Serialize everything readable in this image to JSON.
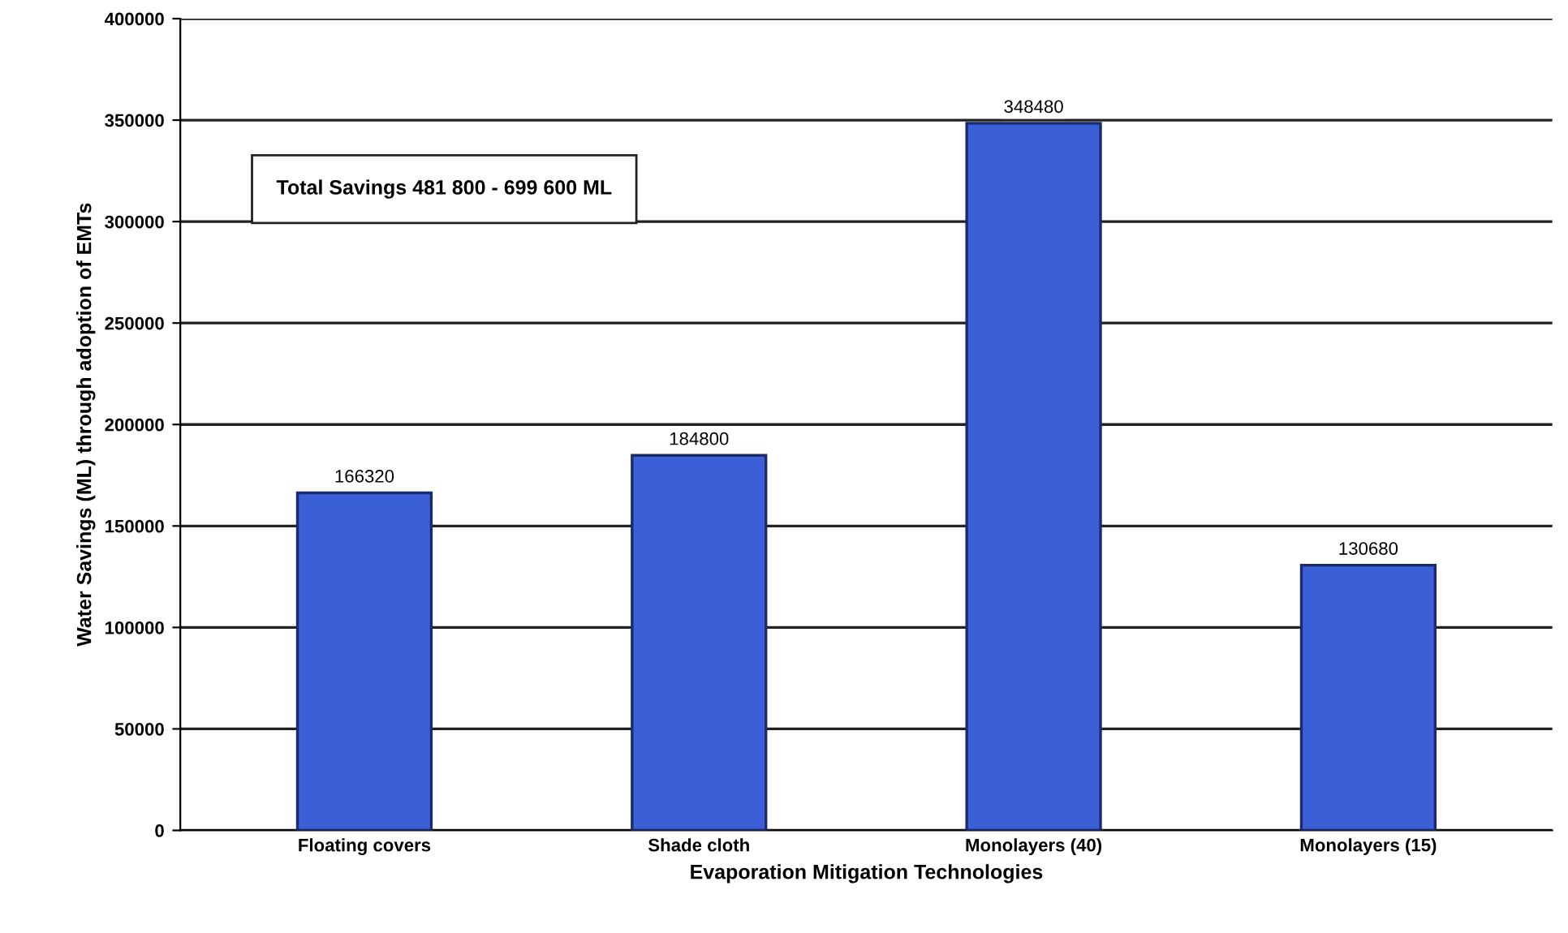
{
  "chart_data": {
    "type": "bar",
    "xlabel": "Evaporation Mitigation Technologies",
    "ylabel": "Water Savings (ML) through adoption of EMTs",
    "categories": [
      "Floating covers",
      "Shade cloth",
      "Monolayers (40)",
      "Monolayers (15)"
    ],
    "values": [
      166320,
      184800,
      348480,
      130680
    ],
    "color": "#3a5fd6",
    "ylim": [
      0,
      400000
    ],
    "yticks": [
      0,
      50000,
      100000,
      150000,
      200000,
      250000,
      300000,
      350000,
      400000
    ],
    "grid": "y",
    "data_labels": true,
    "annotations": [
      "Total Savings 481 800 - 699 600 ML"
    ]
  }
}
